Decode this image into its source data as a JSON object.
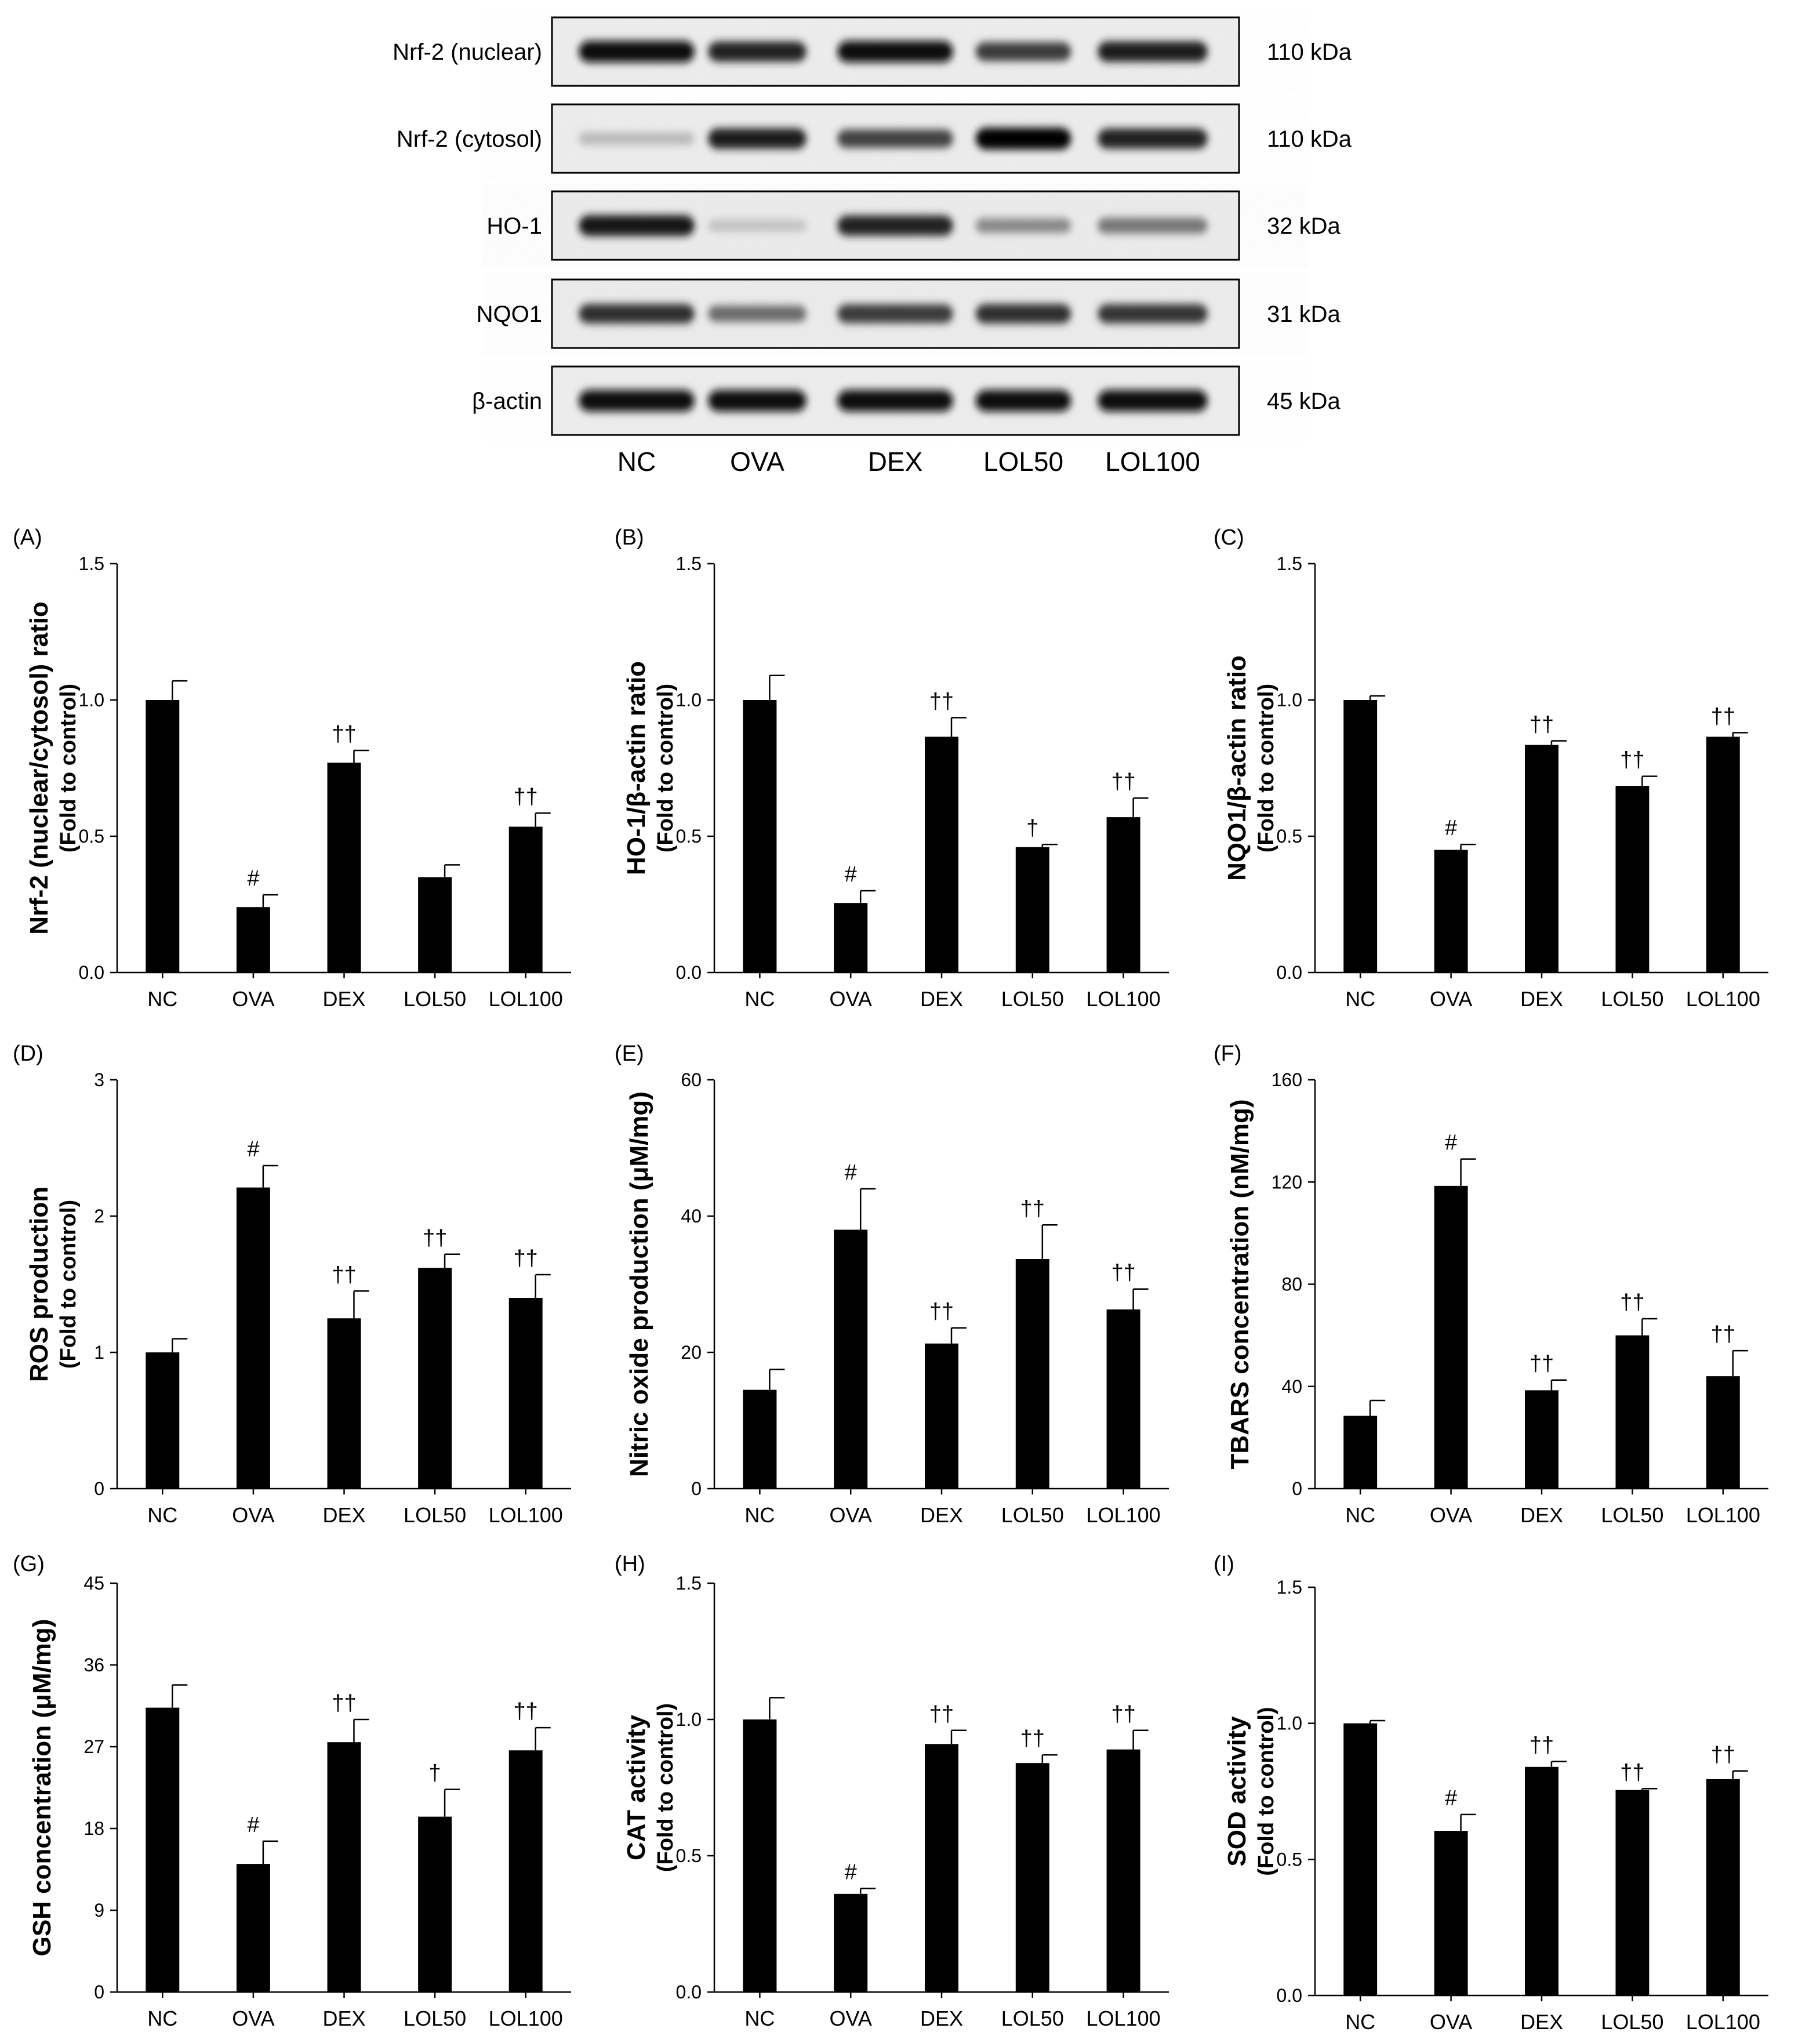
{
  "blot": {
    "rows": [
      {
        "label": "Nrf-2 (nuclear)",
        "kda": "110 kDa",
        "bands": [
          0.95,
          0.85,
          0.95,
          0.75,
          0.88
        ],
        "noise": 0.05
      },
      {
        "label": "Nrf-2 (cytosol)",
        "kda": "110 kDa",
        "bands": [
          0.22,
          0.88,
          0.72,
          0.98,
          0.85
        ],
        "noise": 0.05
      },
      {
        "label": "HO-1",
        "kda": "32 kDa",
        "bands": [
          0.9,
          0.18,
          0.85,
          0.42,
          0.5
        ],
        "noise": 0.15
      },
      {
        "label": "NQO1",
        "kda": "31 kDa",
        "bands": [
          0.8,
          0.55,
          0.75,
          0.8,
          0.78
        ],
        "noise": 0.12
      },
      {
        "label": "β-actin",
        "kda": "45 kDa",
        "bands": [
          0.95,
          0.95,
          0.95,
          0.95,
          0.95
        ],
        "noise": 0.03
      }
    ],
    "lanes": [
      "NC",
      "OVA",
      "DEX",
      "LOL50",
      "LOL100"
    ]
  },
  "chart_data": [
    {
      "panel": "(A)",
      "type": "bar",
      "categories": [
        "NC",
        "OVA",
        "DEX",
        "LOL50",
        "LOL100"
      ],
      "values": [
        1.0,
        0.24,
        0.77,
        0.35,
        0.535
      ],
      "errors": [
        0.07,
        0.045,
        0.045,
        0.045,
        0.05
      ],
      "annotations": [
        "",
        "#",
        "††",
        "",
        "††"
      ],
      "ylabel_lines": [
        "Nrf-2 (nuclear/cytosol) ratio",
        "(Fold to control)"
      ],
      "ylim": [
        0,
        1.5
      ],
      "yticks": [
        "0.0",
        "0.5",
        "1.0",
        "1.5"
      ]
    },
    {
      "panel": "(B)",
      "type": "bar",
      "categories": [
        "NC",
        "OVA",
        "DEX",
        "LOL50",
        "LOL100"
      ],
      "values": [
        1.0,
        0.255,
        0.865,
        0.46,
        0.57
      ],
      "errors": [
        0.09,
        0.045,
        0.07,
        0.01,
        0.07
      ],
      "annotations": [
        "",
        "#",
        "††",
        "†",
        "††"
      ],
      "ylabel_lines": [
        "HO-1/β-actin ratio",
        "(Fold to control)"
      ],
      "ylim": [
        0,
        1.5
      ],
      "yticks": [
        "0.0",
        "0.5",
        "1.0",
        "1.5"
      ]
    },
    {
      "panel": "(C)",
      "type": "bar",
      "categories": [
        "NC",
        "OVA",
        "DEX",
        "LOL50",
        "LOL100"
      ],
      "values": [
        1.0,
        0.45,
        0.835,
        0.685,
        0.865
      ],
      "errors": [
        0.015,
        0.02,
        0.015,
        0.035,
        0.015
      ],
      "annotations": [
        "",
        "#",
        "††",
        "††",
        "††"
      ],
      "ylabel_lines": [
        "NQO1/β-actin ratio",
        "(Fold to control)"
      ],
      "ylim": [
        0,
        1.5
      ],
      "yticks": [
        "0.0",
        "0.5",
        "1.0",
        "1.5"
      ]
    },
    {
      "panel": "(D)",
      "type": "bar",
      "categories": [
        "NC",
        "OVA",
        "DEX",
        "LOL50",
        "LOL100"
      ],
      "values": [
        1.0,
        2.21,
        1.25,
        1.62,
        1.4
      ],
      "errors": [
        0.1,
        0.16,
        0.2,
        0.1,
        0.17
      ],
      "annotations": [
        "",
        "#",
        "††",
        "††",
        "††"
      ],
      "ylabel_lines": [
        "ROS production",
        "(Fold to control)"
      ],
      "ylim": [
        0,
        3
      ],
      "yticks": [
        "0",
        "1",
        "2",
        "3"
      ]
    },
    {
      "panel": "(E)",
      "type": "bar",
      "categories": [
        "NC",
        "OVA",
        "DEX",
        "LOL50",
        "LOL100"
      ],
      "values": [
        14.5,
        38.0,
        21.3,
        33.7,
        26.3
      ],
      "errors": [
        3.0,
        6.0,
        2.3,
        5.0,
        3.0
      ],
      "annotations": [
        "",
        "#",
        "††",
        "††",
        "††"
      ],
      "ylabel_lines": [
        "Nitric oxide production (μM/mg)"
      ],
      "ylim": [
        0,
        60
      ],
      "yticks": [
        "0",
        "20",
        "40",
        "60"
      ]
    },
    {
      "panel": "(F)",
      "type": "bar",
      "categories": [
        "NC",
        "OVA",
        "DEX",
        "LOL50",
        "LOL100"
      ],
      "values": [
        28.5,
        118.5,
        38.5,
        60.0,
        44.0
      ],
      "errors": [
        6.0,
        10.5,
        4.0,
        6.5,
        10.0
      ],
      "annotations": [
        "",
        "#",
        "††",
        "††",
        "††"
      ],
      "ylabel_lines": [
        "TBARS concentration (nM/mg)"
      ],
      "ylim": [
        0,
        160
      ],
      "yticks": [
        "0",
        "40",
        "80",
        "120",
        "160"
      ]
    },
    {
      "panel": "(G)",
      "type": "bar",
      "categories": [
        "NC",
        "OVA",
        "DEX",
        "LOL50",
        "LOL100"
      ],
      "values": [
        31.3,
        14.1,
        27.5,
        19.3,
        26.6
      ],
      "errors": [
        2.5,
        2.5,
        2.5,
        3.0,
        2.5
      ],
      "annotations": [
        "",
        "#",
        "††",
        "†",
        "††"
      ],
      "ylabel_lines": [
        "GSH concentration (μM/mg)"
      ],
      "ylim": [
        0,
        45
      ],
      "yticks": [
        "0",
        "9",
        "18",
        "27",
        "36",
        "45"
      ]
    },
    {
      "panel": "(H)",
      "type": "bar",
      "categories": [
        "NC",
        "OVA",
        "DEX",
        "LOL50",
        "LOL100"
      ],
      "values": [
        1.0,
        0.36,
        0.91,
        0.84,
        0.89
      ],
      "errors": [
        0.08,
        0.02,
        0.05,
        0.03,
        0.07
      ],
      "annotations": [
        "",
        "#",
        "††",
        "††",
        "††"
      ],
      "ylabel_lines": [
        "CAT activity",
        "(Fold to control)"
      ],
      "ylim": [
        0,
        1.5
      ],
      "yticks": [
        "0.0",
        "0.5",
        "1.0",
        "1.5"
      ]
    },
    {
      "panel": "(I)",
      "type": "bar",
      "categories": [
        "NC",
        "OVA",
        "DEX",
        "LOL50",
        "LOL100"
      ],
      "values": [
        1.0,
        0.605,
        0.84,
        0.755,
        0.795
      ],
      "errors": [
        0.01,
        0.06,
        0.02,
        0.005,
        0.03
      ],
      "annotations": [
        "",
        "#",
        "††",
        "††",
        "††"
      ],
      "ylabel_lines": [
        "SOD activity",
        "(Fold to control)"
      ],
      "ylim": [
        0,
        1.5
      ],
      "yticks": [
        "0.0",
        "0.5",
        "1.0",
        "1.5"
      ]
    }
  ]
}
